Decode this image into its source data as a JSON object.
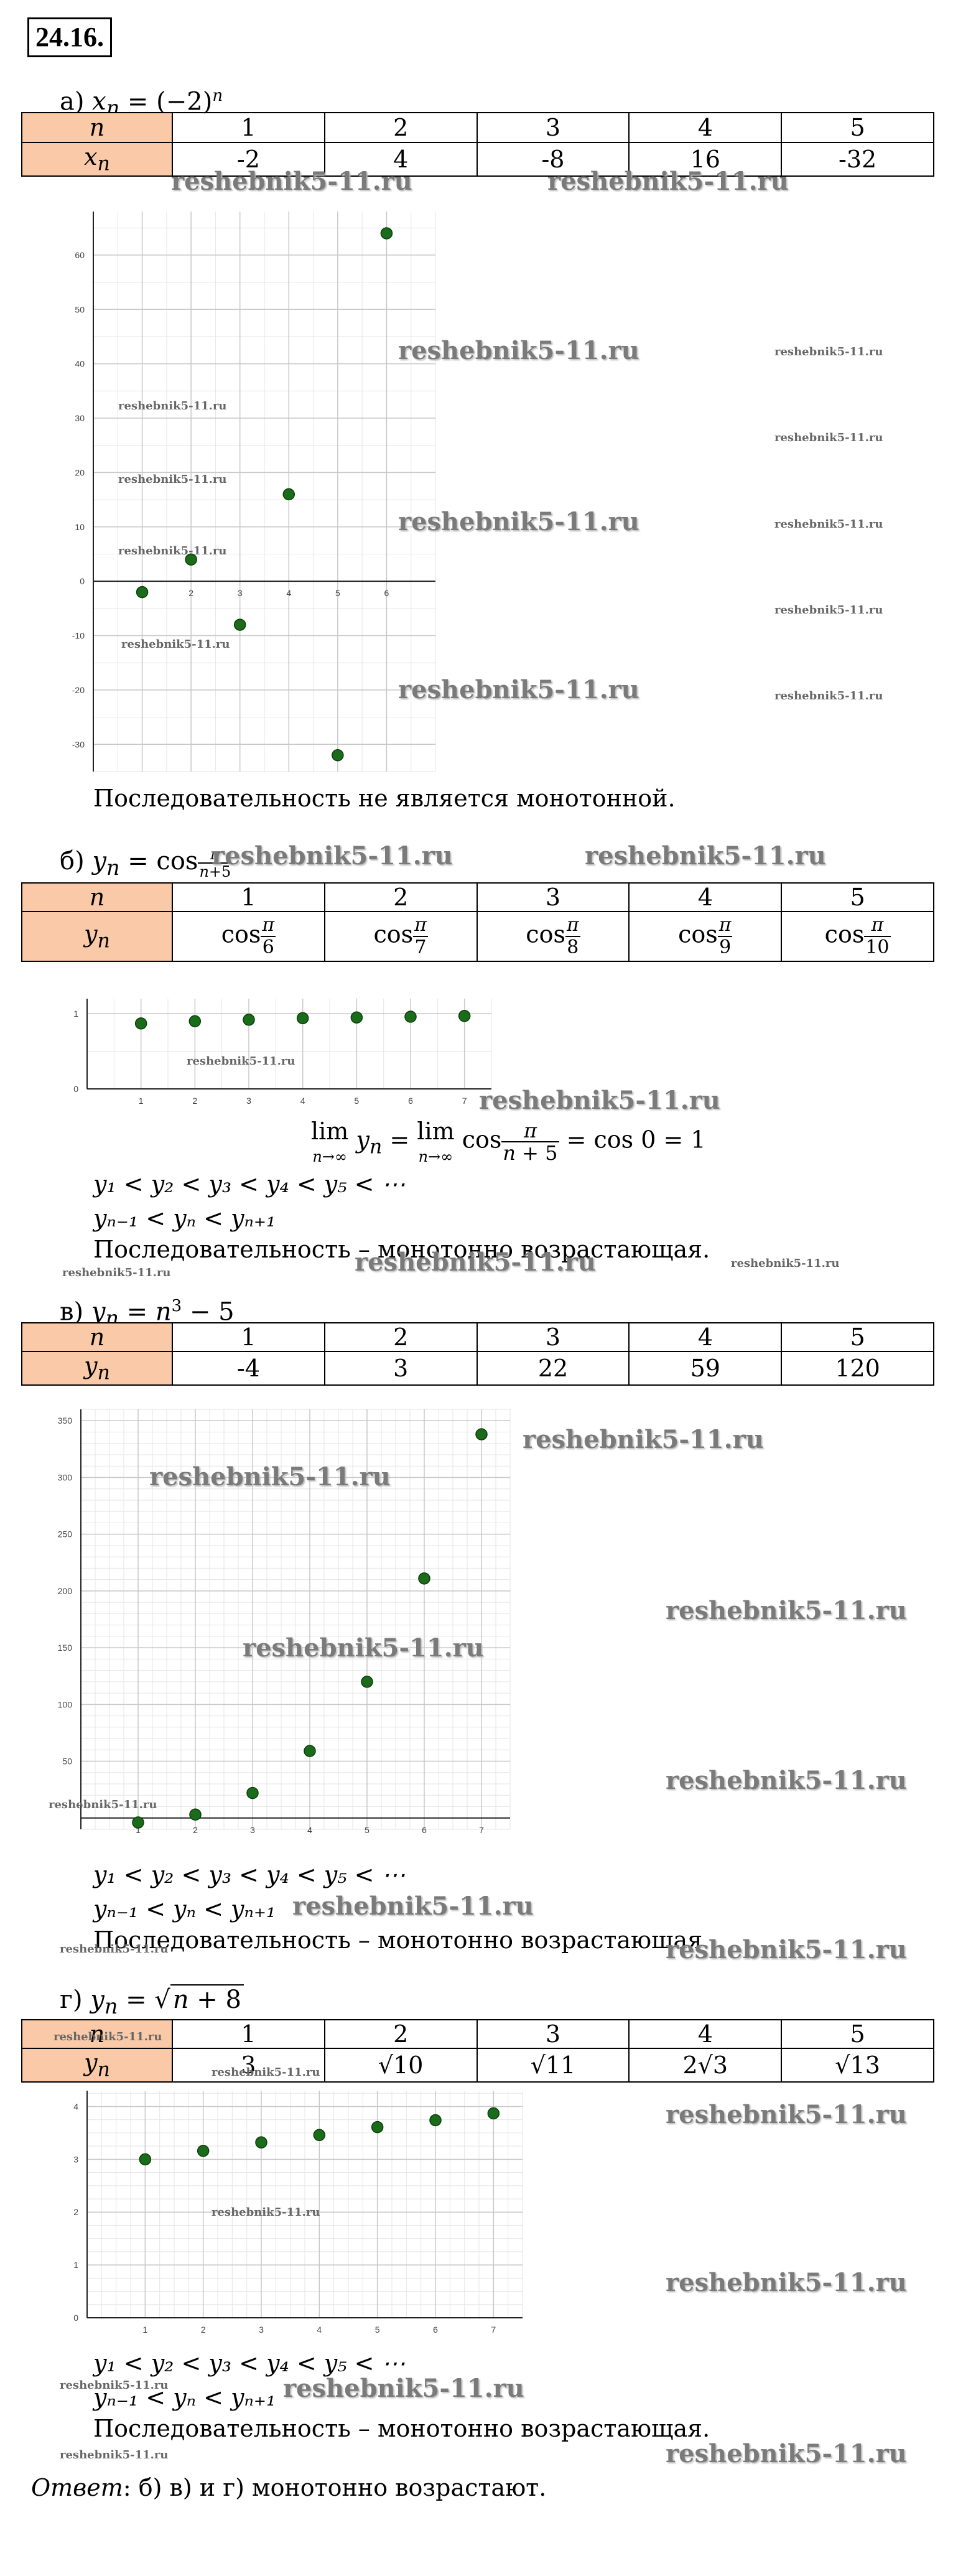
{
  "problem_number": "24.16.",
  "watermark": "reshebnik5-11.ru",
  "colors": {
    "header_fill": "#fac9a7",
    "point_fill": "#1a6b1a",
    "grid": "#d0d0d0"
  },
  "parts": [
    {
      "title": "а) x_n = (−2)^n",
      "title_prefix": "а)",
      "header_row": [
        "n",
        "1",
        "2",
        "3",
        "4",
        "5"
      ],
      "value_label": "x_n",
      "values": [
        "-2",
        "4",
        "-8",
        "16",
        "-32"
      ],
      "chart_data": {
        "type": "scatter",
        "x": [
          1,
          2,
          3,
          4,
          5,
          6
        ],
        "y": [
          -2,
          4,
          -8,
          16,
          -32,
          64
        ],
        "xlim": [
          0,
          7
        ],
        "ylim": [
          -35,
          68
        ],
        "xticks": [
          "1",
          "2",
          "3",
          "4",
          "5",
          "6"
        ],
        "yticks": [
          "60",
          "50",
          "40",
          "30",
          "20",
          "10",
          "0",
          "-10",
          "-20",
          "-30"
        ],
        "grid": true
      },
      "conclusion": "Последовательность не является монотонной."
    },
    {
      "title_prefix": "б)",
      "header_row": [
        "n",
        "1",
        "2",
        "3",
        "4",
        "5"
      ],
      "value_label": "y_n",
      "values": [
        "cos π/6",
        "cos π/7",
        "cos π/8",
        "cos π/9",
        "cos π/10"
      ],
      "chart_data": {
        "type": "scatter",
        "x": [
          1,
          2,
          3,
          4,
          5,
          6,
          7
        ],
        "y": [
          0.87,
          0.9,
          0.92,
          0.94,
          0.95,
          0.96,
          0.97
        ],
        "xlim": [
          0,
          7.5
        ],
        "ylim": [
          0,
          1.2
        ],
        "xticks": [
          "1",
          "2",
          "3",
          "4",
          "5",
          "6",
          "7"
        ],
        "yticks": [
          "1",
          "0"
        ],
        "grid": true
      },
      "limit_line": "lim y_n = lim cos π/(n+5) = cos 0 = 1",
      "ineq1": "y₁ < y₂ < y₃ < y₄ < y₅ < ⋯",
      "ineq2": "yₙ₋₁ < yₙ < yₙ₊₁",
      "conclusion": "Последовательность – монотонно возрастающая."
    },
    {
      "title": "в) y_n = n³ − 5",
      "title_prefix": "в)",
      "header_row": [
        "n",
        "1",
        "2",
        "3",
        "4",
        "5"
      ],
      "value_label": "y_n",
      "values": [
        "-4",
        "3",
        "22",
        "59",
        "120"
      ],
      "chart_data": {
        "type": "scatter",
        "x": [
          1,
          2,
          3,
          4,
          5,
          6,
          7
        ],
        "y": [
          -4,
          3,
          22,
          59,
          120,
          211,
          338
        ],
        "xlim": [
          0,
          7.5
        ],
        "ylim": [
          -10,
          360
        ],
        "xticks": [
          "1",
          "2",
          "3",
          "4",
          "5",
          "6",
          "7"
        ],
        "yticks": [
          "350",
          "300",
          "250",
          "200",
          "150",
          "100",
          "50"
        ],
        "grid": true
      },
      "ineq1": "y₁ < y₂ < y₃ < y₄ < y₅ < ⋯",
      "ineq2": "yₙ₋₁ < yₙ < yₙ₊₁",
      "conclusion": "Последовательность – монотонно возрастающая."
    },
    {
      "title": "г) y_n = √(n + 8)",
      "title_prefix": "г)",
      "header_row": [
        "n",
        "1",
        "2",
        "3",
        "4",
        "5"
      ],
      "value_label": "y_n",
      "values": [
        "3",
        "√10",
        "√11",
        "2√3",
        "√13"
      ],
      "chart_data": {
        "type": "scatter",
        "x": [
          1,
          2,
          3,
          4,
          5,
          6,
          7
        ],
        "y": [
          3,
          3.16,
          3.32,
          3.46,
          3.61,
          3.74,
          3.87
        ],
        "xlim": [
          0,
          7.5
        ],
        "ylim": [
          0,
          4.3
        ],
        "xticks": [
          "1",
          "2",
          "3",
          "4",
          "5",
          "6",
          "7"
        ],
        "yticks": [
          "4",
          "3",
          "2",
          "1",
          "0"
        ],
        "grid": true
      },
      "ineq1": "y₁ < y₂ < y₃ < y₄ < y₅ < ⋯",
      "ineq2": "yₙ₋₁ < yₙ < yₙ₊₁",
      "conclusion": "Последовательность – монотонно возрастающая."
    }
  ],
  "answer_label": "Ответ",
  "answer_text": ": б) в) и г) монотонно возрастают."
}
